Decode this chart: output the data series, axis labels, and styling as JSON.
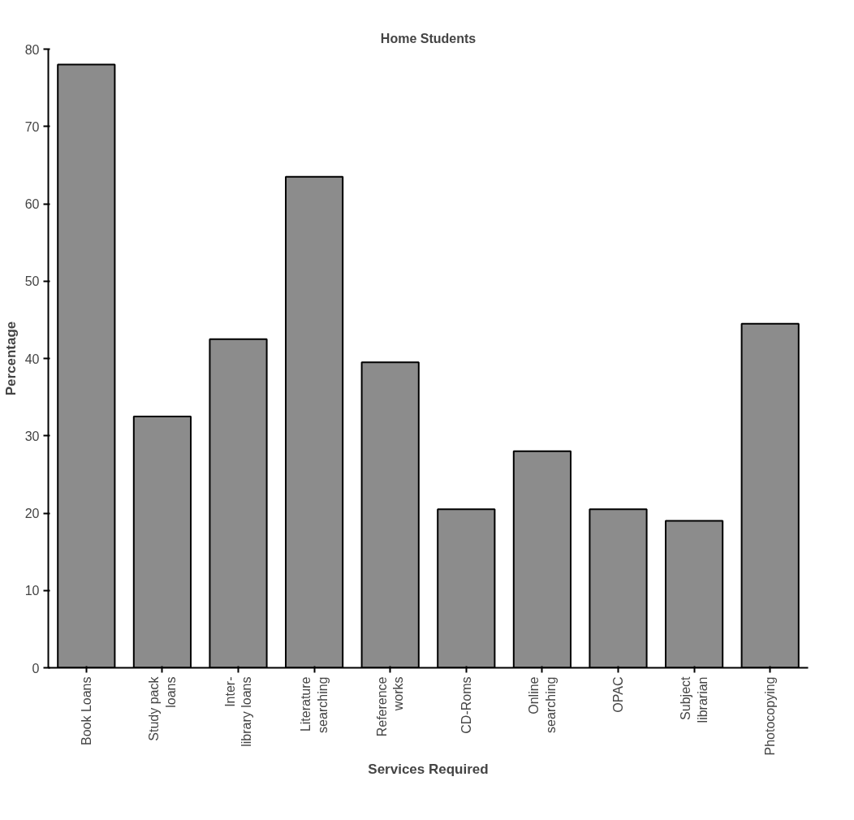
{
  "chart_data": {
    "type": "bar",
    "title": "Home Students",
    "xlabel": "Services Required",
    "ylabel": "Percentage",
    "categories": [
      "Book Loans",
      "Study pack\nloans",
      "Inter-\nlibrary loans",
      "Literature\nsearching",
      "Reference\nworks",
      "CD-Roms",
      "Online\nsearching",
      "OPAC",
      "Subject\nlibrarian",
      "Photocopying"
    ],
    "values": [
      78,
      32.5,
      42.5,
      63.5,
      39.5,
      20.5,
      28,
      20.5,
      19,
      44.5
    ],
    "color": "#8c8c8c",
    "ylim": [
      0,
      80
    ],
    "yticks": [
      0,
      10,
      20,
      30,
      40,
      50,
      60,
      70,
      80
    ],
    "grid": false
  }
}
